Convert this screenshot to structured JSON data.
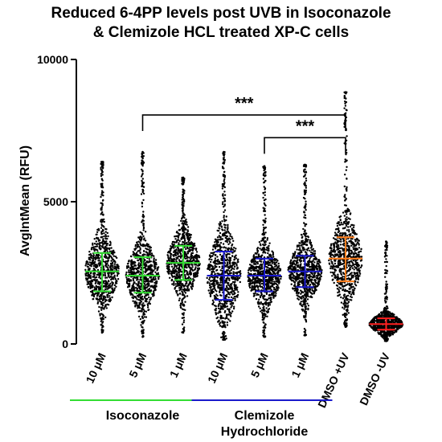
{
  "chart_data": {
    "type": "violin-scatter",
    "title_lines": [
      "Reduced 6-4PP levels post UVB in Isoconazole",
      "& Clemizole HCL treated XP-C cells"
    ],
    "ylabel": "AvgIntMean (RFU)",
    "ylim": [
      0,
      10000
    ],
    "yticks": [
      0,
      5000,
      10000
    ],
    "ytick_labels": [
      "0",
      "5000",
      "10000"
    ],
    "categories": [
      "10 μM",
      "5 μM",
      "1 μM",
      "10 μM",
      "5 μM",
      "1 μM",
      "DMSO +UV",
      "DMSO -UV"
    ],
    "series": [
      {
        "median": 2550,
        "sd_low": 1850,
        "sd_high": 3200,
        "min": 400,
        "max": 6400,
        "color": "#33dd33"
      },
      {
        "median": 2400,
        "sd_low": 1800,
        "sd_high": 3050,
        "min": 250,
        "max": 6750,
        "color": "#33dd33"
      },
      {
        "median": 2850,
        "sd_low": 2250,
        "sd_high": 3450,
        "min": 400,
        "max": 5850,
        "color": "#33dd33"
      },
      {
        "median": 2400,
        "sd_low": 1550,
        "sd_high": 3250,
        "min": 150,
        "max": 6750,
        "color": "#1a1acc"
      },
      {
        "median": 2400,
        "sd_low": 1850,
        "sd_high": 3000,
        "min": 250,
        "max": 6250,
        "color": "#1a1acc"
      },
      {
        "median": 2550,
        "sd_low": 2000,
        "sd_high": 3100,
        "min": 300,
        "max": 6300,
        "color": "#1a1acc"
      },
      {
        "median": 3000,
        "sd_low": 2200,
        "sd_high": 3750,
        "min": 600,
        "max": 8850,
        "color": "#ff7f1e"
      },
      {
        "median": 700,
        "sd_low": 500,
        "sd_high": 900,
        "min": 100,
        "max": 3600,
        "color": "#ff2020"
      }
    ],
    "groups": [
      {
        "label": "Isoconazole",
        "from": 0,
        "to": 2,
        "color": "#33dd33"
      },
      {
        "label": "Clemizole\nHydrochloride",
        "from": 3,
        "to": 5,
        "color": "#1a1acc"
      }
    ],
    "significance": [
      {
        "from": 1,
        "to": 6,
        "label": "***",
        "y": 8050
      },
      {
        "from": 4,
        "to": 6,
        "label": "***",
        "y": 7250
      }
    ]
  }
}
